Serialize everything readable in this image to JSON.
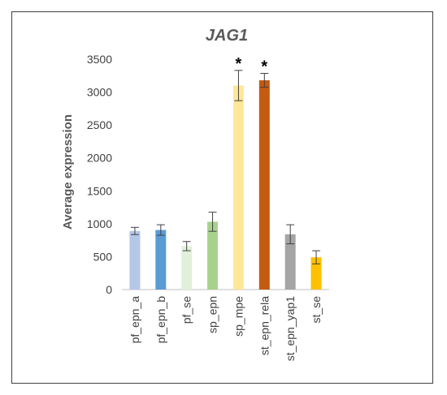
{
  "chart_data": {
    "type": "bar",
    "title": "JAG1",
    "xlabel": "",
    "ylabel": "Average expression",
    "ylim": [
      0,
      3500
    ],
    "yticks": [
      "0",
      "500",
      "1000",
      "1500",
      "2000",
      "2500",
      "3000",
      "3500"
    ],
    "grid": false,
    "legend": "none",
    "categories": [
      "pf_epn_a",
      "pf_epn_b",
      "pf_se",
      "sp_epn",
      "sp_mpe",
      "st_epn_rela",
      "st_epn_yap1",
      "st_se"
    ],
    "values": [
      890,
      905,
      660,
      1030,
      3100,
      3180,
      840,
      490
    ],
    "errors": [
      55,
      80,
      70,
      145,
      230,
      105,
      145,
      100
    ],
    "annotations": [
      "",
      "",
      "",
      "",
      "*",
      "*",
      "",
      ""
    ],
    "colors": [
      "#b4c7e7",
      "#5b9bd5",
      "#e2efda",
      "#a9d18e",
      "#ffe699",
      "#c55a11",
      "#a5a5a5",
      "#ffc000"
    ]
  }
}
